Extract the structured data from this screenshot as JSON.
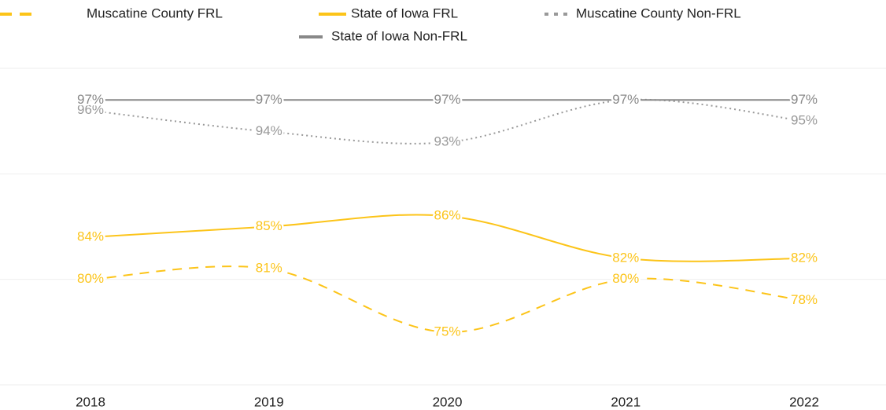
{
  "chart_data": {
    "type": "line",
    "categories": [
      "2018",
      "2019",
      "2020",
      "2021",
      "2022"
    ],
    "series": [
      {
        "name": "Muscatine County FRL",
        "color": "#fcc419",
        "line_style": "dashed",
        "values": [
          80,
          81,
          75,
          80,
          78
        ],
        "value_labels": [
          "80%",
          "81%",
          "75%",
          "80%",
          "78%"
        ]
      },
      {
        "name": "State of Iowa FRL",
        "color": "#fcc419",
        "line_style": "solid",
        "values": [
          84,
          85,
          86,
          82,
          82
        ],
        "value_labels": [
          "84%",
          "85%",
          "86%",
          "82%",
          "82%"
        ]
      },
      {
        "name": "Muscatine County Non-FRL",
        "color": "#999999",
        "line_style": "dotted",
        "values": [
          96,
          94,
          93,
          97,
          95
        ],
        "value_labels": [
          "96%",
          "94%",
          "93%",
          "97%",
          "95%"
        ]
      },
      {
        "name": "State of Iowa Non-FRL",
        "color": "#888888",
        "line_style": "solid",
        "values": [
          97,
          97,
          97,
          97,
          97
        ],
        "value_labels": [
          "97%",
          "97%",
          "97%",
          "97%",
          "97%"
        ]
      }
    ],
    "ylim": [
      70,
      100
    ],
    "yticks": [
      70,
      80,
      90,
      100
    ],
    "grid": true,
    "legend": "top"
  }
}
